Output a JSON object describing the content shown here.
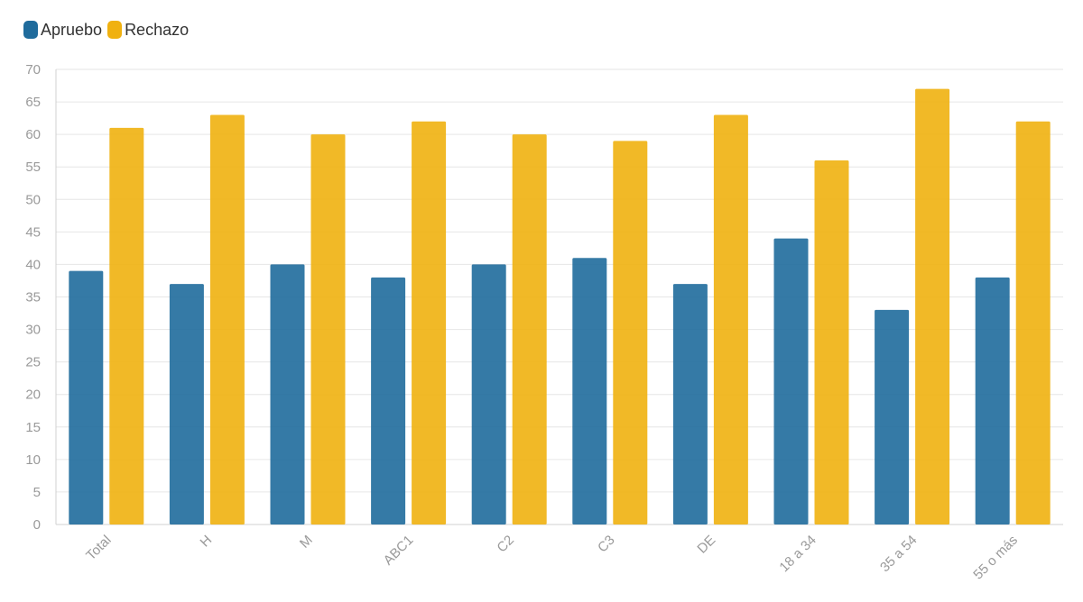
{
  "chart_data": {
    "type": "bar",
    "title": "",
    "xlabel": "",
    "ylabel": "",
    "categories": [
      "Total",
      "H",
      "M",
      "ABC1",
      "C2",
      "C3",
      "DE",
      "18 a 34",
      "35 a 54",
      "55 o más"
    ],
    "series": [
      {
        "name": "Apruebo",
        "color": "#1f6b9c",
        "values": [
          39,
          37,
          40,
          38,
          40,
          41,
          37,
          44,
          33,
          38
        ]
      },
      {
        "name": "Rechazo",
        "color": "#f0b110",
        "values": [
          61,
          63,
          60,
          62,
          60,
          59,
          63,
          56,
          67,
          62
        ]
      }
    ],
    "ylim": [
      0,
      70
    ],
    "yticks": [
      0,
      5,
      10,
      15,
      20,
      25,
      30,
      35,
      40,
      45,
      50,
      55,
      60,
      65,
      70
    ],
    "grid": true,
    "legend_position": "top-left"
  },
  "colors": {
    "gridline": "#e6e6e6",
    "axis": "#d0d0d0",
    "tick_text": "#9a9a9a"
  }
}
